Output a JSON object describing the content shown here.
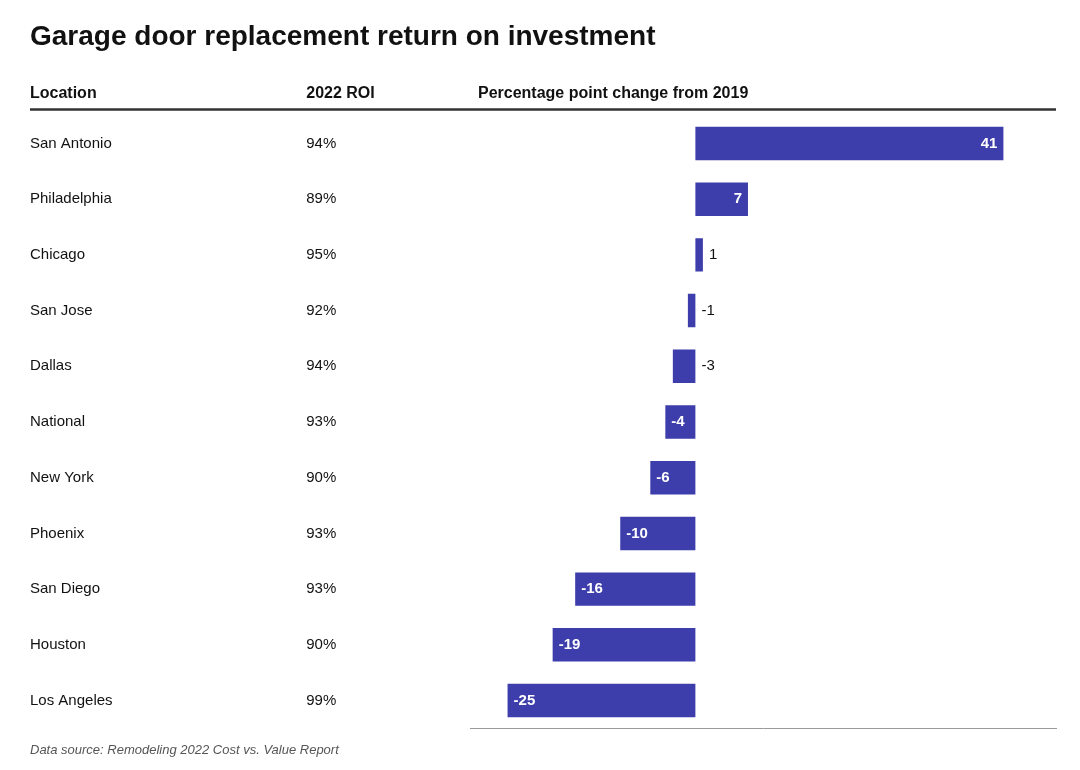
{
  "chart_data": {
    "type": "bar",
    "orientation": "horizontal",
    "title": "Garage door replacement return on investment",
    "column_headers": [
      "Location",
      "2022 ROI",
      "Percentage point change from 2019"
    ],
    "categories": [
      "San Antonio",
      "Philadelphia",
      "Chicago",
      "San Jose",
      "Dallas",
      "National",
      "New York",
      "Phoenix",
      "San Diego",
      "Houston",
      "Los Angeles"
    ],
    "values": [
      41,
      7,
      1,
      -1,
      -3,
      -4,
      -6,
      -10,
      -16,
      -19,
      -25
    ],
    "roi_values": [
      "94%",
      "89%",
      "95%",
      "92%",
      "94%",
      "93%",
      "90%",
      "93%",
      "93%",
      "90%",
      "99%"
    ],
    "annotations": [
      "Data source: Remodeling 2022 Cost vs. Value Report"
    ],
    "color": "#3d3dab",
    "xlim": [
      -30,
      48
    ],
    "grid": false,
    "data_labels": true,
    "tick_labels": "y"
  }
}
